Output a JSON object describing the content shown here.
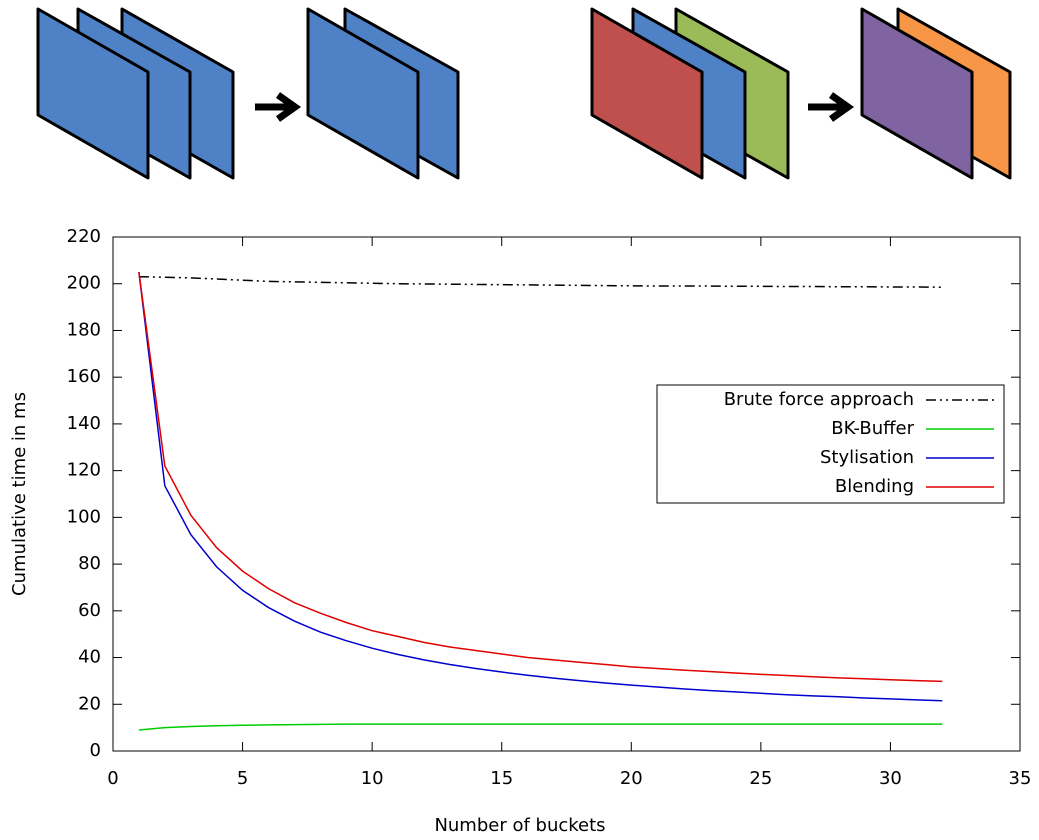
{
  "chart_data": {
    "type": "line",
    "xlabel": "Number of buckets",
    "ylabel": "Cumulative time in ms",
    "x": [
      1,
      2,
      3,
      4,
      5,
      6,
      7,
      8,
      9,
      10,
      11,
      12,
      13,
      14,
      15,
      16,
      17,
      18,
      19,
      20,
      21,
      22,
      23,
      24,
      25,
      26,
      27,
      28,
      29,
      30,
      31,
      32
    ],
    "series": [
      {
        "name": "Brute force approach",
        "color": "#000000",
        "line_style": "dash-dot-dot",
        "values": [
          203,
          202.8,
          202.5,
          202,
          201.5,
          201,
          200.8,
          200.6,
          200.4,
          200.2,
          200,
          199.9,
          199.8,
          199.7,
          199.6,
          199.5,
          199.4,
          199.3,
          199.2,
          199.1,
          199,
          199,
          199,
          198.9,
          198.9,
          198.8,
          198.8,
          198.7,
          198.7,
          198.6,
          198.6,
          198.5
        ]
      },
      {
        "name": "BK-Buffer",
        "color": "#00cc00",
        "line_style": "solid",
        "values": [
          9,
          10,
          10.5,
          10.8,
          11,
          11.2,
          11.3,
          11.4,
          11.5,
          11.5,
          11.5,
          11.5,
          11.5,
          11.5,
          11.5,
          11.5,
          11.5,
          11.5,
          11.5,
          11.5,
          11.5,
          11.5,
          11.5,
          11.5,
          11.5,
          11.5,
          11.5,
          11.5,
          11.5,
          11.5,
          11.5,
          11.5
        ]
      },
      {
        "name": "Stylisation",
        "color": "#0000cc",
        "line_style": "solid",
        "values": [
          205,
          113.5,
          92.7,
          78.8,
          68.8,
          61.4,
          55.6,
          50.9,
          47.2,
          44,
          41.3,
          39,
          37,
          35.3,
          33.8,
          32.4,
          31.2,
          30.1,
          29.1,
          28.2,
          27.4,
          26.6,
          25.9,
          25.3,
          24.7,
          24.1,
          23.6,
          23.2,
          22.7,
          22.3,
          21.9,
          21.5
        ]
      },
      {
        "name": "Blending",
        "color": "#e00000",
        "line_style": "solid",
        "values": [
          205,
          122,
          101,
          87,
          77,
          69.5,
          63.5,
          59,
          55,
          51.5,
          49,
          46.5,
          44.5,
          43,
          41.5,
          40,
          39,
          38,
          37,
          36,
          35.3,
          34.6,
          34,
          33.4,
          32.8,
          32.3,
          31.8,
          31.3,
          30.9,
          30.5,
          30.1,
          29.8
        ]
      }
    ],
    "xlim": [
      0,
      35
    ],
    "xticks": [
      0,
      5,
      10,
      15,
      20,
      25,
      30,
      35
    ],
    "ylim": [
      0,
      220
    ],
    "yticks": [
      0,
      20,
      40,
      60,
      80,
      100,
      120,
      140,
      160,
      180,
      200,
      220
    ],
    "grid": false,
    "legend": "right"
  }
}
